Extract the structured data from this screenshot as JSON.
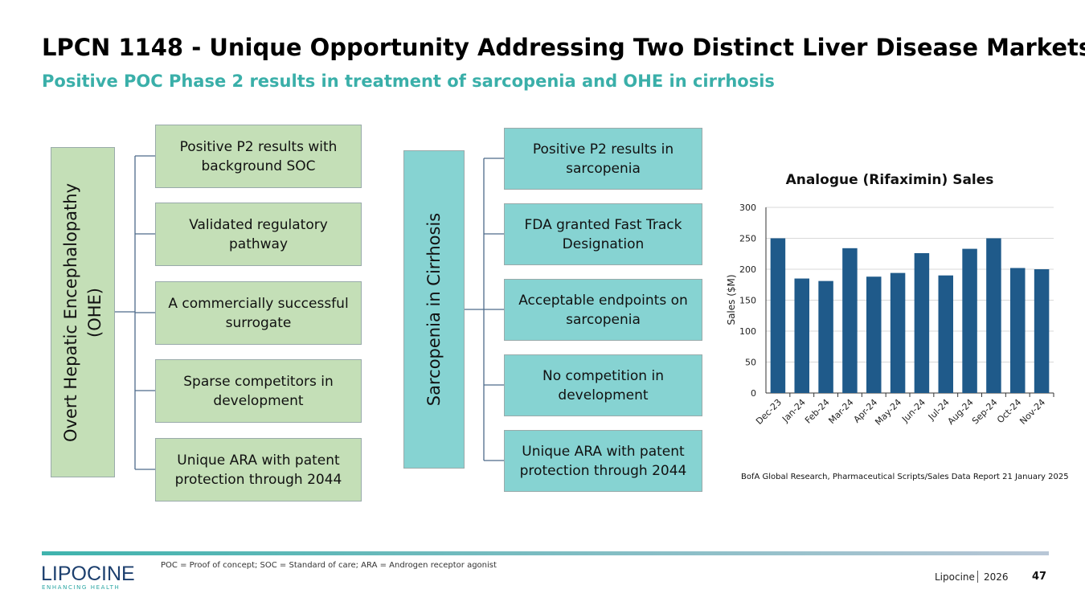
{
  "header": {
    "title": "LPCN 1148 - Unique Opportunity Addressing Two Distinct Liver Disease Markets",
    "subtitle": "Positive POC Phase 2 results in treatment of sarcopenia and OHE in cirrhosis"
  },
  "left_tree": {
    "root": "Overt Hepatic Encephalopathy (OHE)",
    "items": [
      "Positive P2 results with background SOC",
      "Validated regulatory pathway",
      "A commercially successful surrogate",
      "Sparse competitors in development",
      "Unique ARA with patent protection through 2044"
    ]
  },
  "middle_tree": {
    "root": "Sarcopenia in Cirrhosis",
    "items": [
      "Positive P2 results in sarcopenia",
      "FDA granted Fast Track Designation",
      "Acceptable endpoints on sarcopenia",
      "No competition in development",
      "Unique ARA with patent protection through 2044"
    ]
  },
  "chart_data": {
    "type": "bar",
    "title": "Analogue (Rifaximin) Sales",
    "y_label": "Sales ($M)",
    "categories": [
      "Dec-23",
      "Jan-24",
      "Feb-24",
      "Mar-24",
      "Apr-24",
      "May-24",
      "Jun-24",
      "Jul-24",
      "Aug-24",
      "Sep-24",
      "Oct-24",
      "Nov-24"
    ],
    "values": [
      250,
      185,
      181,
      234,
      188,
      194,
      226,
      190,
      233,
      250,
      202,
      200
    ],
    "color": "#1f5a8a",
    "ylim": [
      0,
      300
    ],
    "yticks": [
      0,
      50,
      100,
      150,
      200,
      250,
      300
    ],
    "grid": true,
    "source": "BofA Global Research, Pharmaceutical Scripts/Sales Data Report  21 January 2025"
  },
  "footer": {
    "note": "POC = Proof of concept; SOC = Standard of care; ARA = Androgen receptor agonist",
    "logo": "LIPOCINE",
    "tagline": "ENHANCING HEALTH",
    "company": "Lipocine",
    "year": "2026",
    "page": "47"
  }
}
